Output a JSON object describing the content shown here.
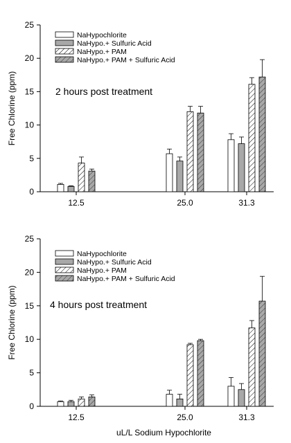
{
  "chart_data": [
    {
      "type": "bar",
      "annotation": "2 hours post treatment",
      "ylabel": "Free Chlorine (ppm)",
      "xlabel": "",
      "categories": [
        "12.5",
        "25.0",
        "31.3"
      ],
      "ylim": [
        0,
        25
      ],
      "yticks": [
        0,
        5,
        10,
        15,
        20,
        25
      ],
      "grid": false,
      "legend_position": "top-left",
      "series": [
        {
          "name": "NaHypochlorite",
          "fill": "white",
          "values": [
            1.1,
            5.7,
            7.8
          ],
          "errors": [
            0.15,
            0.7,
            0.9
          ]
        },
        {
          "name": "NaHypo.+ Sulfuric Acid",
          "fill": "gray",
          "values": [
            0.8,
            4.6,
            7.2
          ],
          "errors": [
            0.1,
            0.6,
            1.0
          ]
        },
        {
          "name": "NaHypo.+ PAM",
          "fill": "hatch",
          "values": [
            4.3,
            12.0,
            16.1
          ],
          "errors": [
            0.9,
            0.8,
            1.0
          ]
        },
        {
          "name": "NaHypo.+ PAM + Sulfuric Acid",
          "fill": "grayhatch",
          "values": [
            3.1,
            11.8,
            17.2
          ],
          "errors": [
            0.3,
            1.0,
            2.6
          ]
        }
      ]
    },
    {
      "type": "bar",
      "annotation": "4 hours post treatment",
      "ylabel": "Free Chlorine (ppm)",
      "xlabel": "uL/L Sodium Hypochlorite",
      "categories": [
        "12.5",
        "25.0",
        "31.3"
      ],
      "ylim": [
        0,
        25
      ],
      "yticks": [
        0,
        5,
        10,
        15,
        20,
        25
      ],
      "grid": false,
      "legend_position": "top-left",
      "series": [
        {
          "name": "NaHypochlorite",
          "fill": "white",
          "values": [
            0.7,
            1.8,
            3.0
          ],
          "errors": [
            0.1,
            0.6,
            1.3
          ]
        },
        {
          "name": "NaHypo.+ Sulfuric Acid",
          "fill": "gray",
          "values": [
            0.7,
            1.1,
            2.5
          ],
          "errors": [
            0.2,
            0.7,
            0.9
          ]
        },
        {
          "name": "NaHypo.+ PAM",
          "fill": "hatch",
          "values": [
            1.1,
            9.2,
            11.7
          ],
          "errors": [
            0.3,
            0.2,
            1.1
          ]
        },
        {
          "name": "NaHypo.+ PAM + Sulfuric Acid",
          "fill": "grayhatch",
          "values": [
            1.4,
            9.8,
            15.7
          ],
          "errors": [
            0.3,
            0.2,
            3.7
          ]
        }
      ]
    }
  ]
}
